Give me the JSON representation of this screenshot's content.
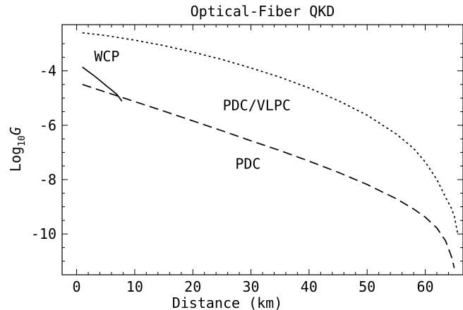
{
  "chart_data": {
    "type": "line",
    "title": "Optical-Fiber QKD",
    "xlabel": "Distance (km)",
    "ylabel": {
      "base": "Log",
      "sub": "10",
      "var": "G"
    },
    "xlim": [
      -2.5,
      66.5
    ],
    "ylim": [
      -11.5,
      -2.3
    ],
    "x_ticks": [
      0,
      10,
      20,
      30,
      40,
      50,
      60
    ],
    "y_ticks": [
      -10,
      -8,
      -6,
      -4
    ],
    "grid": false,
    "legend": "none",
    "series": [
      {
        "name": "WCP",
        "style": "solid",
        "points": [
          [
            1,
            -3.86
          ],
          [
            2,
            -4.02
          ],
          [
            3,
            -4.18
          ],
          [
            4,
            -4.35
          ],
          [
            5,
            -4.53
          ],
          [
            6,
            -4.7
          ],
          [
            7,
            -4.88
          ],
          [
            7.8,
            -5.12
          ]
        ]
      },
      {
        "name": "PDC/VLPC",
        "style": "dotted",
        "points": [
          [
            1,
            -2.6
          ],
          [
            5,
            -2.7
          ],
          [
            10,
            -2.87
          ],
          [
            15,
            -3.07
          ],
          [
            20,
            -3.31
          ],
          [
            25,
            -3.58
          ],
          [
            30,
            -3.89
          ],
          [
            35,
            -4.23
          ],
          [
            40,
            -4.63
          ],
          [
            45,
            -5.09
          ],
          [
            50,
            -5.63
          ],
          [
            55,
            -6.32
          ],
          [
            58,
            -6.85
          ],
          [
            60,
            -7.35
          ],
          [
            62,
            -8.0
          ],
          [
            63.5,
            -8.65
          ],
          [
            64.5,
            -9.05
          ],
          [
            65,
            -9.35
          ],
          [
            65.6,
            -10.0
          ]
        ]
      },
      {
        "name": "PDC",
        "style": "dashed",
        "points": [
          [
            1,
            -4.5
          ],
          [
            5,
            -4.78
          ],
          [
            10,
            -5.13
          ],
          [
            15,
            -5.48
          ],
          [
            20,
            -5.84
          ],
          [
            25,
            -6.2
          ],
          [
            30,
            -6.57
          ],
          [
            35,
            -6.93
          ],
          [
            40,
            -7.32
          ],
          [
            45,
            -7.73
          ],
          [
            50,
            -8.18
          ],
          [
            55,
            -8.7
          ],
          [
            58,
            -9.08
          ],
          [
            60,
            -9.38
          ],
          [
            62,
            -9.78
          ],
          [
            63.5,
            -10.25
          ],
          [
            64.5,
            -10.82
          ],
          [
            65,
            -11.25
          ]
        ]
      }
    ],
    "annotations": [
      {
        "text": "WCP",
        "x": 5.2,
        "y": -3.65
      },
      {
        "text": "PDC/VLPC",
        "x": 31,
        "y": -5.45
      },
      {
        "text": "PDC",
        "x": 29.5,
        "y": -7.6
      }
    ]
  }
}
